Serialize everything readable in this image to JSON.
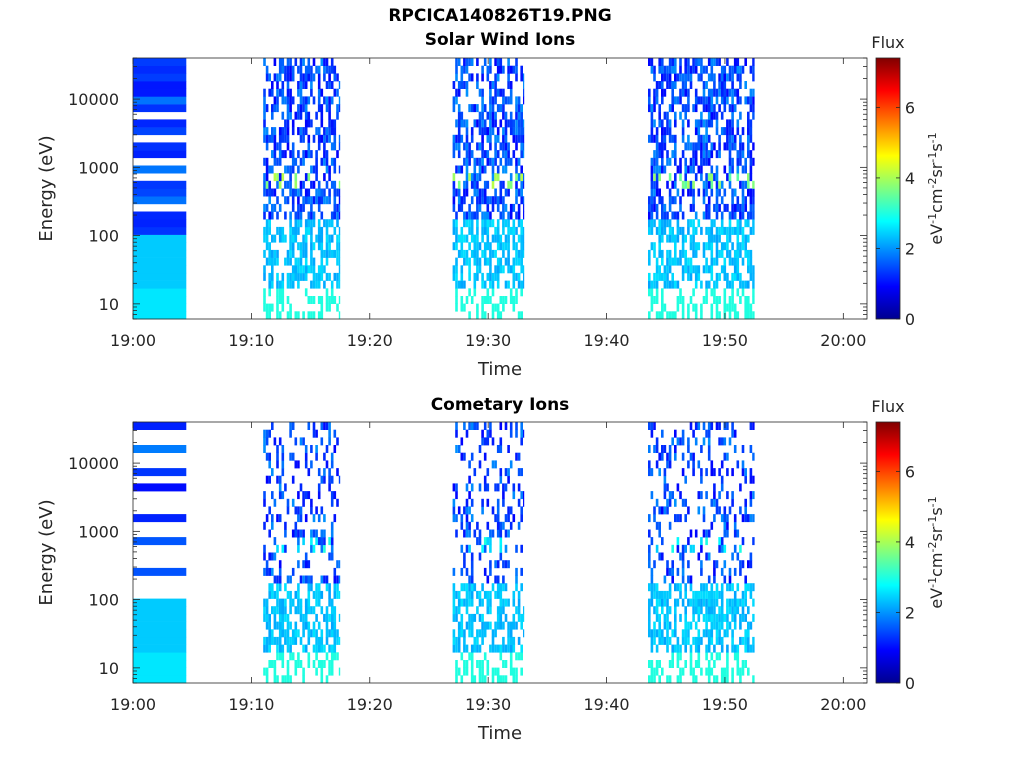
{
  "figure_title": "RPCICA140826T19.PNG",
  "chart_data": [
    {
      "type": "heatmap",
      "title": "Solar Wind Ions",
      "xlabel": "Time",
      "ylabel": "Energy (eV)",
      "x_ticks": [
        "19:00",
        "19:10",
        "19:20",
        "19:30",
        "19:40",
        "19:50",
        "20:00"
      ],
      "xlim": [
        "19:00",
        "20:02"
      ],
      "y_scale": "log",
      "y_ticks": [
        "10",
        "100",
        "1000",
        "10000"
      ],
      "ylim": [
        6,
        40000
      ],
      "colorbar": {
        "title": "Flux",
        "label": "eV-1cm-2sr-1s-1",
        "ticks": [
          "0",
          "2",
          "4",
          "6"
        ],
        "range": [
          0,
          7.4
        ],
        "colormap": "jet"
      },
      "bursts": [
        {
          "start": "19:00",
          "end": "19:04.5",
          "max_flux": 3.0
        },
        {
          "start": "19:11",
          "end": "19:17.5",
          "max_flux": 4.2
        },
        {
          "start": "19:27",
          "end": "19:33",
          "max_flux": 4.2
        },
        {
          "start": "19:43.5",
          "end": "19:52.5",
          "max_flux": 4.0
        }
      ]
    },
    {
      "type": "heatmap",
      "title": "Cometary Ions",
      "xlabel": "Time",
      "ylabel": "Energy (eV)",
      "x_ticks": [
        "19:00",
        "19:10",
        "19:20",
        "19:30",
        "19:40",
        "19:50",
        "20:00"
      ],
      "xlim": [
        "19:00",
        "20:02"
      ],
      "y_scale": "log",
      "y_ticks": [
        "10",
        "100",
        "1000",
        "10000"
      ],
      "ylim": [
        6,
        40000
      ],
      "colorbar": {
        "title": "Flux",
        "label": "eV-1cm-2sr-1s-1",
        "ticks": [
          "0",
          "2",
          "4",
          "6"
        ],
        "range": [
          0,
          7.4
        ],
        "colormap": "jet"
      },
      "bursts": [
        {
          "start": "19:00",
          "end": "19:04.5",
          "max_flux": 3.0
        },
        {
          "start": "19:11",
          "end": "19:17.5",
          "max_flux": 3.0
        },
        {
          "start": "19:27",
          "end": "19:33",
          "max_flux": 3.0
        },
        {
          "start": "19:43.5",
          "end": "19:52.5",
          "max_flux": 3.0
        }
      ]
    }
  ]
}
